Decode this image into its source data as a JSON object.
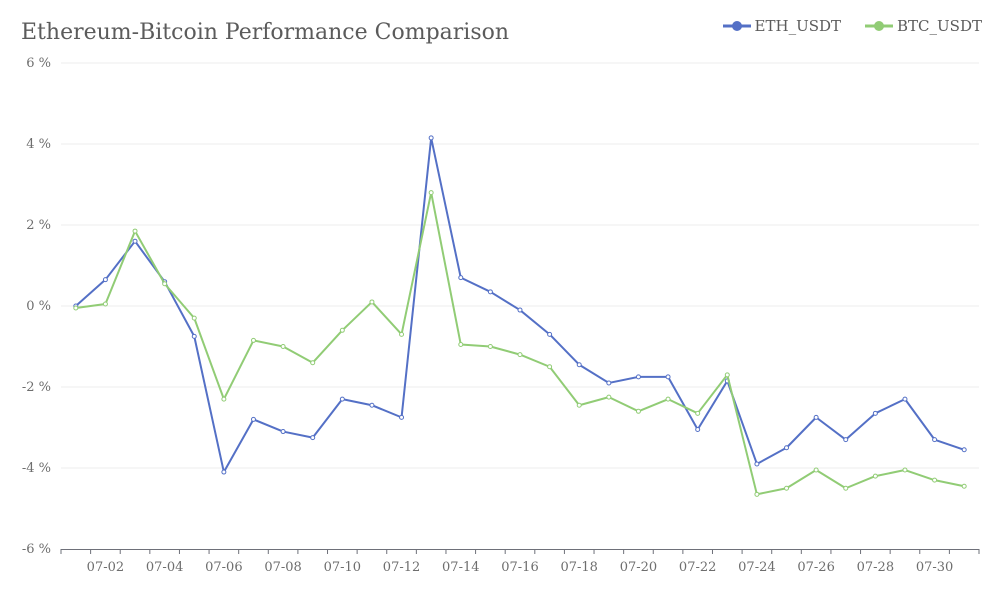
{
  "chart_data": {
    "type": "line",
    "title": "Ethereum-Bitcoin Performance Comparison",
    "x": [
      "07-01",
      "07-02",
      "07-03",
      "07-04",
      "07-05",
      "07-06",
      "07-07",
      "07-08",
      "07-09",
      "07-10",
      "07-11",
      "07-12",
      "07-13",
      "07-14",
      "07-15",
      "07-16",
      "07-17",
      "07-18",
      "07-19",
      "07-20",
      "07-21",
      "07-22",
      "07-23",
      "07-24",
      "07-25",
      "07-26",
      "07-27",
      "07-28",
      "07-29",
      "07-30",
      "07-31"
    ],
    "x_tick_labels": [
      "07-02",
      "07-04",
      "07-06",
      "07-08",
      "07-10",
      "07-12",
      "07-14",
      "07-16",
      "07-18",
      "07-20",
      "07-22",
      "07-24",
      "07-26",
      "07-28",
      "07-30"
    ],
    "y_ticks": [
      -6,
      -4,
      -2,
      0,
      2,
      4,
      6
    ],
    "y_tick_labels": [
      "-6 %",
      "-4 %",
      "-2 %",
      "0 %",
      "2 %",
      "4 %",
      "6 %"
    ],
    "ylim": [
      -6,
      6
    ],
    "y_unit": "%",
    "grid": true,
    "legend_position": "top-right",
    "series": [
      {
        "name": "ETH_USDT",
        "color": "#5470c6",
        "values": [
          0.0,
          0.65,
          1.6,
          0.6,
          -0.75,
          -4.1,
          -2.8,
          -3.1,
          -3.25,
          -2.3,
          -2.45,
          -2.75,
          4.15,
          0.7,
          0.35,
          -0.1,
          -0.7,
          -1.45,
          -1.9,
          -1.75,
          -1.75,
          -3.05,
          -1.85,
          -3.9,
          -3.5,
          -2.75,
          -3.3,
          -2.65,
          -2.3,
          -3.3,
          -3.55
        ]
      },
      {
        "name": "BTC_USDT",
        "color": "#91cc75",
        "values": [
          -0.05,
          0.05,
          1.85,
          0.55,
          -0.3,
          -2.3,
          -0.85,
          -1.0,
          -1.4,
          -0.6,
          0.1,
          -0.7,
          2.8,
          -0.95,
          -1.0,
          -1.2,
          -1.5,
          -2.45,
          -2.25,
          -2.6,
          -2.3,
          -2.65,
          -1.7,
          -4.65,
          -4.5,
          -4.05,
          -4.5,
          -4.2,
          -4.05,
          -4.3,
          -4.45
        ]
      }
    ]
  }
}
